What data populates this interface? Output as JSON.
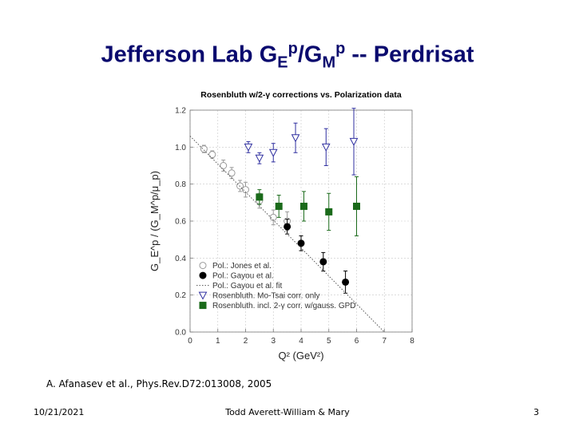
{
  "slide": {
    "title_main": "Jefferson Lab G",
    "title_sub1": "E",
    "title_sup1": "p",
    "title_mid": "/G",
    "title_sub2": "M",
    "title_sup2": "p",
    "title_end": " -- Perdrisat",
    "citation": "A. Afanasev et al., Phys.Rev.D72:013008, 2005",
    "footer_date": "10/21/2021",
    "footer_center": "Todd Averett-William & Mary",
    "page_number": "3"
  },
  "chart_data": {
    "type": "scatter",
    "title": "Rosenbluth w/2-γ corrections vs. Polarization data",
    "xlabel": "Q² (GeV²)",
    "ylabel": "G_E^p / (G_M^p/μ_p)",
    "xlim": [
      0,
      8
    ],
    "ylim": [
      0.0,
      1.2
    ],
    "xticks": [
      "0",
      "1",
      "2",
      "3",
      "4",
      "5",
      "6",
      "7",
      "8"
    ],
    "yticks": [
      "0.0",
      "0.2",
      "0.4",
      "0.6",
      "0.8",
      "1.0",
      "1.2"
    ],
    "grid": true,
    "legend_position": "bottom-left",
    "series": [
      {
        "name": "Pol.: Jones et al.",
        "marker": "open-circle",
        "color": "#9a9a9a",
        "points": [
          {
            "x": 0.5,
            "y": 0.99,
            "err": 0.02
          },
          {
            "x": 0.8,
            "y": 0.96,
            "err": 0.02
          },
          {
            "x": 1.2,
            "y": 0.9,
            "err": 0.03
          },
          {
            "x": 1.5,
            "y": 0.86,
            "err": 0.03
          },
          {
            "x": 1.8,
            "y": 0.79,
            "err": 0.03
          },
          {
            "x": 2.0,
            "y": 0.77,
            "err": 0.04
          },
          {
            "x": 2.5,
            "y": 0.71,
            "err": 0.04
          },
          {
            "x": 3.0,
            "y": 0.62,
            "err": 0.04
          },
          {
            "x": 3.5,
            "y": 0.6,
            "err": 0.05
          }
        ]
      },
      {
        "name": "Pol.: Gayou et al.",
        "marker": "filled-circle",
        "color": "#000000",
        "points": [
          {
            "x": 3.5,
            "y": 0.57,
            "err": 0.04
          },
          {
            "x": 4.0,
            "y": 0.48,
            "err": 0.04
          },
          {
            "x": 4.8,
            "y": 0.38,
            "err": 0.05
          },
          {
            "x": 5.6,
            "y": 0.27,
            "err": 0.06
          }
        ]
      },
      {
        "name": "Pol.: Gayou et al. fit",
        "marker": "dotted-line",
        "color": "#555555",
        "line": [
          [
            0.0,
            1.06
          ],
          [
            7.0,
            0.0
          ]
        ]
      },
      {
        "name": "Rosenbluth. Mo-Tsai corr. only",
        "marker": "open-triangle-down",
        "color": "#3030a0",
        "points": [
          {
            "x": 2.1,
            "y": 1.0,
            "err": 0.03
          },
          {
            "x": 2.5,
            "y": 0.94,
            "err": 0.03
          },
          {
            "x": 3.0,
            "y": 0.97,
            "err": 0.05
          },
          {
            "x": 3.8,
            "y": 1.05,
            "err": 0.08
          },
          {
            "x": 4.9,
            "y": 1.0,
            "err": 0.1
          },
          {
            "x": 5.9,
            "y": 1.03,
            "err": 0.18
          }
        ]
      },
      {
        "name": "Rosenbluth. incl. 2-γ corr. w/gauss. GPD",
        "marker": "filled-square",
        "color": "#1a6a1a",
        "points": [
          {
            "x": 2.5,
            "y": 0.73,
            "err": 0.04
          },
          {
            "x": 3.2,
            "y": 0.68,
            "err": 0.06
          },
          {
            "x": 4.1,
            "y": 0.68,
            "err": 0.08
          },
          {
            "x": 5.0,
            "y": 0.65,
            "err": 0.1
          },
          {
            "x": 6.0,
            "y": 0.68,
            "err": 0.16
          }
        ]
      }
    ]
  }
}
